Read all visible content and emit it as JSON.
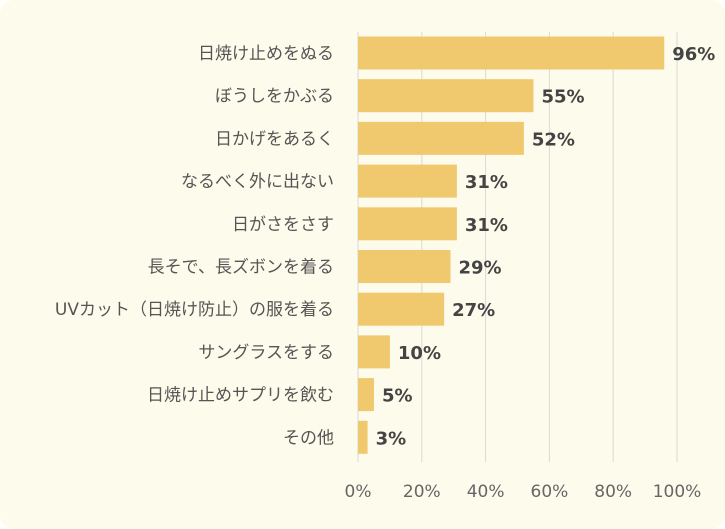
{
  "chart_data": {
    "type": "bar",
    "orientation": "horizontal",
    "categories": [
      "日焼け止めをぬる",
      "ぼうしをかぶる",
      "日かげをあるく",
      "なるべく外に出ない",
      "日がさをさす",
      "長そで、長ズボンを着る",
      "UVカット（日焼け防止）の服を着る",
      "サングラスをする",
      "日焼け止めサプリを飲む",
      "その他"
    ],
    "values": [
      96,
      55,
      52,
      31,
      31,
      29,
      27,
      10,
      5,
      3
    ],
    "value_labels": [
      "96%",
      "55%",
      "52%",
      "31%",
      "31%",
      "29%",
      "27%",
      "10%",
      "5%",
      "3%"
    ],
    "xlim": [
      0,
      100
    ],
    "x_ticks": [
      0,
      20,
      40,
      60,
      80,
      100
    ],
    "x_tick_labels": [
      "0%",
      "20%",
      "40%",
      "60%",
      "80%",
      "100%"
    ],
    "grid": "vertical",
    "legend": "none"
  },
  "colors": {
    "bar": "#f0c96e",
    "grid": "#d9d9d9",
    "background": "#fdfbeb"
  }
}
